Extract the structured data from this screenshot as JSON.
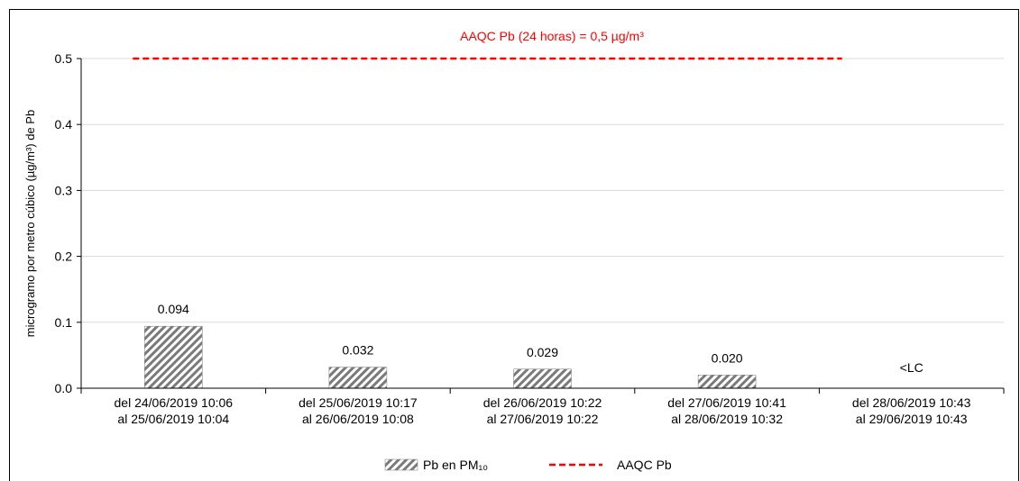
{
  "chart_data": {
    "type": "bar",
    "categories": [
      [
        "del 24/06/2019 10:06",
        "al 25/06/2019 10:04"
      ],
      [
        "del 25/06/2019 10:17",
        "al 26/06/2019 10:08"
      ],
      [
        "del 26/06/2019 10:22",
        "al 27/06/2019 10:22"
      ],
      [
        "del 27/06/2019 10:41",
        "al 28/06/2019 10:32"
      ],
      [
        "del 28/06/2019 10:43",
        "al 29/06/2019 10:43"
      ]
    ],
    "series": [
      {
        "name": "Pb en PM₁₀",
        "values": [
          0.094,
          0.032,
          0.029,
          0.02,
          null
        ],
        "labels": [
          "0.094",
          "0.032",
          "0.029",
          "0.020",
          "<LC"
        ],
        "pattern": "diagonal-hatch",
        "color": "#808080"
      }
    ],
    "reference_line": {
      "name": "AAQC Pb",
      "value": 0.5,
      "label": "AAQC Pb  (24 horas) = 0,5 µg/m³",
      "color": "#ff0000",
      "style": "dashed"
    },
    "ylabel": "microgramo  por metro cúbico (µg/m³) de Pb",
    "ylim": [
      0,
      0.5
    ],
    "yticks": [
      "0.0",
      "0.1",
      "0.2",
      "0.3",
      "0.4",
      "0.5"
    ],
    "grid": true,
    "legend_position": "bottom-center",
    "legend": {
      "bar_label": "Pb  en PM₁₀",
      "line_label": "AAQC Pb"
    }
  }
}
